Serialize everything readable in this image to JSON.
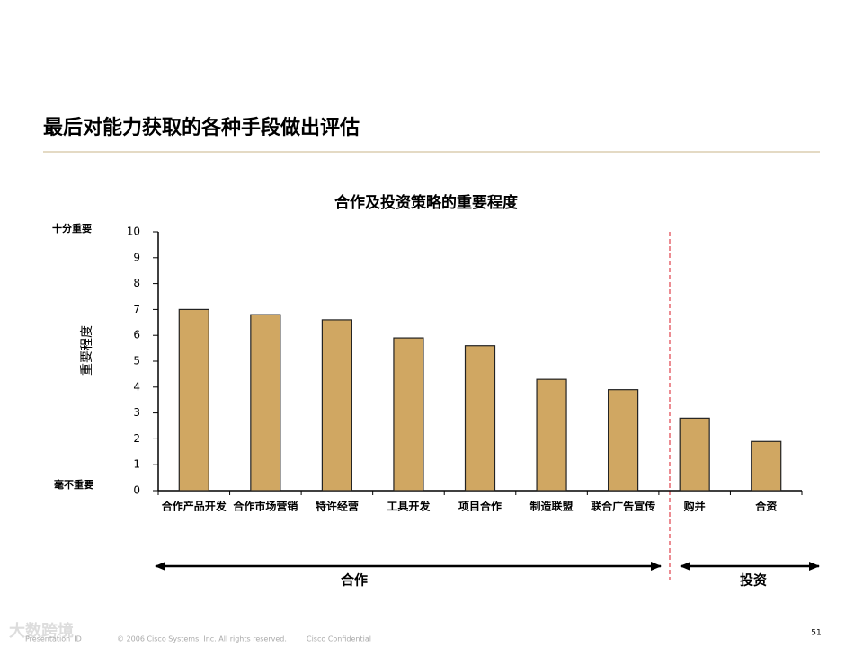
{
  "title": "最后对能力获取的各种手段做出评估",
  "chart_data": {
    "type": "bar",
    "title": "合作及投资策略的重要程度",
    "categories": [
      "合作产品开发",
      "合作市场营销",
      "特许经营",
      "工具开发",
      "项目合作",
      "制造联盟",
      "联合广告宣传",
      "购并",
      "合资"
    ],
    "values": [
      7.0,
      6.8,
      6.6,
      5.9,
      5.6,
      4.3,
      3.9,
      2.8,
      1.9
    ],
    "color": "#d0a762",
    "ylim": [
      0,
      10
    ],
    "yticks": [
      0,
      1,
      2,
      3,
      4,
      5,
      6,
      7,
      8,
      9,
      10
    ],
    "y_label": "重要程度",
    "y_top_label": "十分重要",
    "y_bottom_label": "毫不重要"
  },
  "groups": [
    "合作",
    "投资"
  ],
  "footer": {
    "id": "Presentation_ID",
    "copyright": "© 2006 Cisco Systems, Inc. All rights reserved.",
    "confidential": "Cisco Confidential"
  },
  "page_number": "51",
  "watermark": "大数跨境"
}
